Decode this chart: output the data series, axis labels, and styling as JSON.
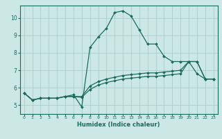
{
  "title": "",
  "xlabel": "Humidex (Indice chaleur)",
  "background_color": "#cce8e4",
  "grid_color": "#aaccc8",
  "line_color": "#1a6b5a",
  "xlim": [
    -0.5,
    23.5
  ],
  "ylim": [
    4.5,
    10.7
  ],
  "xticks": [
    0,
    1,
    2,
    3,
    4,
    5,
    6,
    7,
    8,
    9,
    10,
    11,
    12,
    13,
    14,
    15,
    16,
    17,
    18,
    19,
    20,
    21,
    22,
    23
  ],
  "yticks": [
    5,
    6,
    7,
    8,
    9,
    10
  ],
  "line1_x": [
    0,
    1,
    2,
    3,
    4,
    5,
    6,
    7,
    8,
    9,
    10,
    11,
    12,
    13,
    14,
    15,
    16,
    17,
    18,
    19,
    20,
    21,
    22,
    23
  ],
  "line1_y": [
    5.7,
    5.3,
    5.4,
    5.4,
    5.4,
    5.5,
    5.5,
    5.45,
    5.9,
    6.15,
    6.3,
    6.4,
    6.5,
    6.55,
    6.6,
    6.65,
    6.65,
    6.7,
    6.75,
    6.8,
    7.5,
    7.5,
    6.5,
    6.5
  ],
  "line2_x": [
    0,
    1,
    2,
    3,
    4,
    5,
    6,
    7,
    8,
    9,
    10,
    11,
    12,
    13,
    14,
    15,
    16,
    17,
    18,
    19,
    20,
    21,
    22,
    23
  ],
  "line2_y": [
    5.7,
    5.3,
    5.4,
    5.4,
    5.4,
    5.5,
    5.5,
    5.5,
    6.1,
    6.35,
    6.5,
    6.6,
    6.7,
    6.75,
    6.8,
    6.85,
    6.85,
    6.9,
    6.95,
    7.0,
    7.5,
    7.5,
    6.5,
    6.5
  ],
  "line3_x": [
    0,
    1,
    2,
    3,
    4,
    5,
    6,
    7,
    8,
    9,
    10,
    11,
    12,
    13,
    14,
    15,
    16,
    17,
    18,
    19,
    20,
    21,
    22,
    23
  ],
  "line3_y": [
    5.7,
    5.3,
    5.4,
    5.4,
    5.4,
    5.5,
    5.6,
    4.9,
    8.3,
    8.9,
    9.4,
    10.3,
    10.4,
    10.1,
    9.3,
    8.5,
    8.5,
    7.8,
    7.5,
    7.5,
    7.5,
    6.8,
    6.5,
    6.5
  ]
}
